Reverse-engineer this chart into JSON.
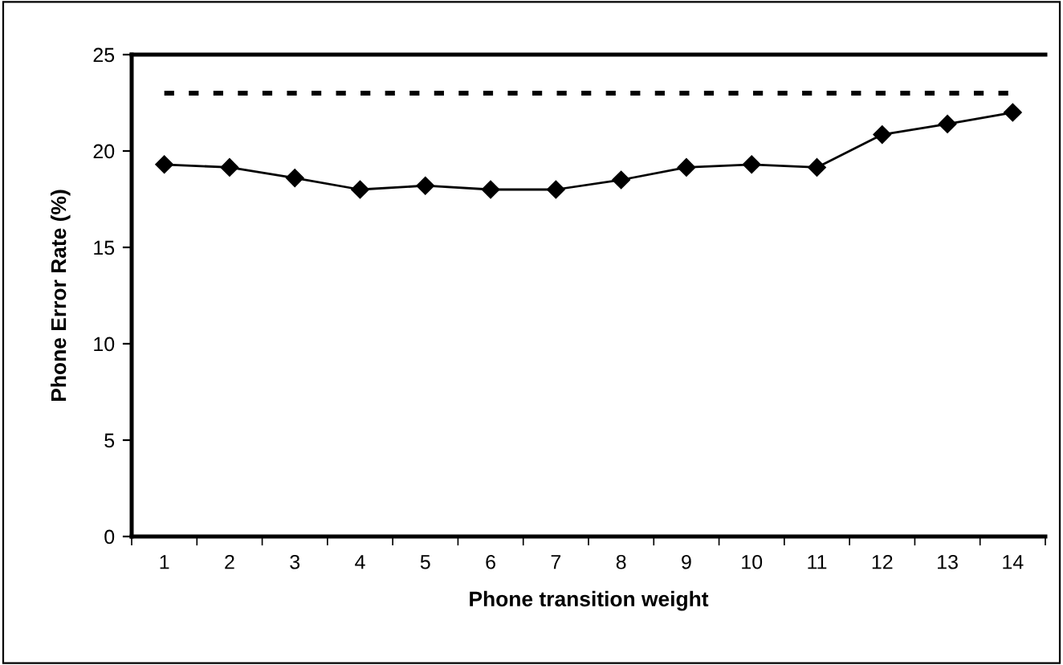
{
  "chart_data": {
    "type": "line",
    "xlabel": "Phone transition weight",
    "ylabel": "Phone Error Rate (%)",
    "categories": [
      "1",
      "2",
      "3",
      "4",
      "5",
      "6",
      "7",
      "8",
      "9",
      "10",
      "11",
      "12",
      "13",
      "14"
    ],
    "series": [
      {
        "color": "#000000",
        "values": [
          19.3,
          19.15,
          18.6,
          18.0,
          18.2,
          18.0,
          18.0,
          18.5,
          19.15,
          19.3,
          19.15,
          20.85,
          21.4,
          22.0
        ]
      }
    ],
    "ylim": [
      0,
      25
    ],
    "yticks": [
      0,
      5,
      10,
      15,
      20,
      25
    ],
    "grid": false,
    "legend": false,
    "marker": "diamond",
    "line_style": "solid",
    "ref_lines": [
      {
        "axis": "y",
        "value": 23,
        "label": null,
        "color": "#000000",
        "line_style": "dotted"
      }
    ]
  }
}
